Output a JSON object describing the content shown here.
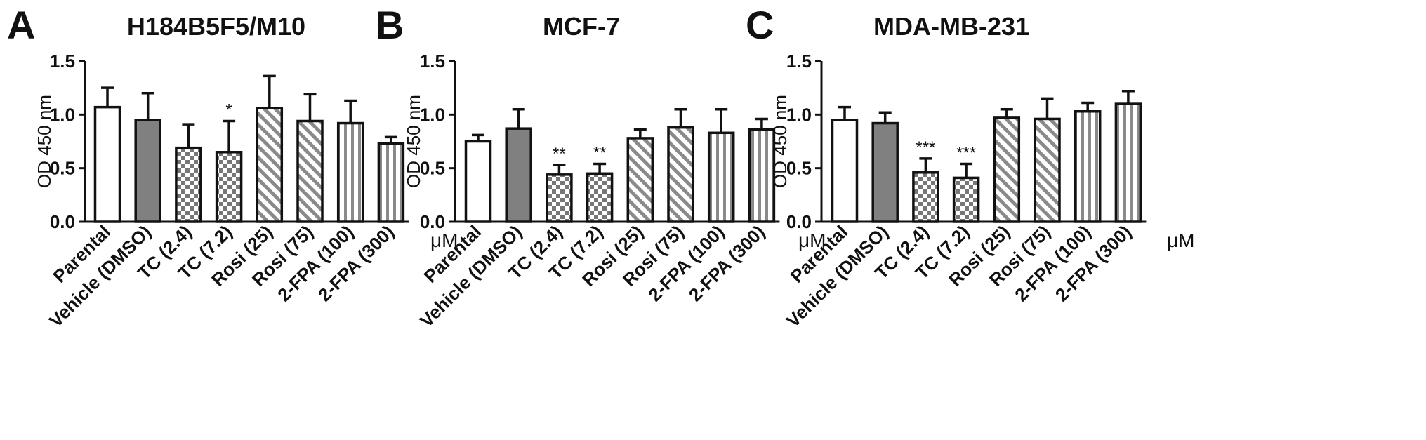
{
  "figure": {
    "unit_label": "μM",
    "fill_colors": {
      "white": "#ffffff",
      "gray": "#808080",
      "pattern_stroke": "#666666"
    }
  },
  "chart_data": [
    {
      "type": "bar",
      "panel": "A",
      "title": "H184B5F5/M10",
      "ylabel": "OD 450 nm",
      "ylim": [
        0,
        1.5
      ],
      "yticks": [
        "0.0",
        "0.5",
        "1.0",
        "1.5"
      ],
      "unit": "μM",
      "categories": [
        "Parental",
        "Vehicle (DMSO)",
        "TC (2.4)",
        "TC (7.2)",
        "Rosi (25)",
        "Rosi (75)",
        "2-FPA (100)",
        "2-FPA (300)"
      ],
      "fills": [
        "white",
        "gray",
        "check",
        "check",
        "diag",
        "diag",
        "vert",
        "vert"
      ],
      "values": [
        1.07,
        0.95,
        0.69,
        0.65,
        1.06,
        0.94,
        0.92,
        0.73
      ],
      "errors": [
        0.18,
        0.25,
        0.22,
        0.29,
        0.3,
        0.25,
        0.21,
        0.06
      ],
      "significance": [
        "",
        "",
        "",
        "*",
        "",
        "",
        "",
        ""
      ]
    },
    {
      "type": "bar",
      "panel": "B",
      "title": "MCF-7",
      "ylabel": "OD 450 nm",
      "ylim": [
        0,
        1.5
      ],
      "yticks": [
        "0.0",
        "0.5",
        "1.0",
        "1.5"
      ],
      "unit": "μM",
      "categories": [
        "Parental",
        "Vehicle (DMSO)",
        "TC (2.4)",
        "TC (7.2)",
        "Rosi (25)",
        "Rosi (75)",
        "2-FPA (100)",
        "2-FPA (300)"
      ],
      "fills": [
        "white",
        "gray",
        "check",
        "check",
        "diag",
        "diag",
        "vert",
        "vert"
      ],
      "values": [
        0.75,
        0.87,
        0.44,
        0.45,
        0.78,
        0.88,
        0.83,
        0.86
      ],
      "errors": [
        0.06,
        0.18,
        0.09,
        0.09,
        0.08,
        0.17,
        0.22,
        0.1
      ],
      "significance": [
        "",
        "",
        "**",
        "**",
        "",
        "",
        "",
        ""
      ]
    },
    {
      "type": "bar",
      "panel": "C",
      "title": "MDA-MB-231",
      "ylabel": "OD 450 nm",
      "ylim": [
        0,
        1.5
      ],
      "yticks": [
        "0.0",
        "0.5",
        "1.0",
        "1.5"
      ],
      "unit": "μM",
      "categories": [
        "Parental",
        "Vehicle (DMSO)",
        "TC (2.4)",
        "TC (7.2)",
        "Rosi (25)",
        "Rosi (75)",
        "2-FPA (100)",
        "2-FPA (300)"
      ],
      "fills": [
        "white",
        "gray",
        "check",
        "check",
        "diag",
        "diag",
        "vert",
        "vert"
      ],
      "values": [
        0.95,
        0.92,
        0.46,
        0.41,
        0.97,
        0.96,
        1.03,
        1.1
      ],
      "errors": [
        0.12,
        0.1,
        0.13,
        0.13,
        0.08,
        0.19,
        0.08,
        0.12
      ],
      "significance": [
        "",
        "",
        "***",
        "***",
        "",
        "",
        "",
        ""
      ]
    }
  ]
}
